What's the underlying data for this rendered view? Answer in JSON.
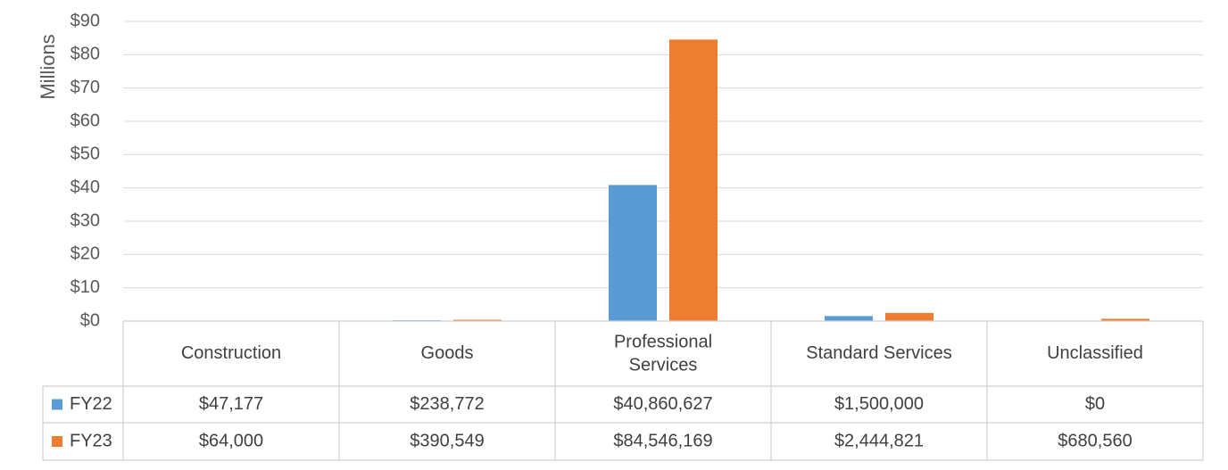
{
  "chart_data": {
    "type": "bar",
    "ylabel": "Millions",
    "ylim": [
      0,
      90
    ],
    "yticks": [
      "$0",
      "$10",
      "$20",
      "$30",
      "$40",
      "$50",
      "$60",
      "$70",
      "$80",
      "$90"
    ],
    "categories": [
      "Construction",
      "Goods",
      "Professional Services",
      "Standard Services",
      "Unclassified"
    ],
    "grid": true,
    "legend": "data-table",
    "series": [
      {
        "name": "FY22",
        "color": "#5b9bd5",
        "values": [
          0.047177,
          0.238772,
          40.860627,
          1.5,
          0
        ],
        "labels": [
          "$47,177",
          "$238,772",
          "$40,860,627",
          "$1,500,000",
          "$0"
        ]
      },
      {
        "name": "FY23",
        "color": "#ed7d31",
        "values": [
          0.064,
          0.390549,
          84.546169,
          2.444821,
          0.68056
        ],
        "labels": [
          "$64,000",
          "$390,549",
          "$84,546,169",
          "$2,444,821",
          "$680,560"
        ]
      }
    ]
  }
}
